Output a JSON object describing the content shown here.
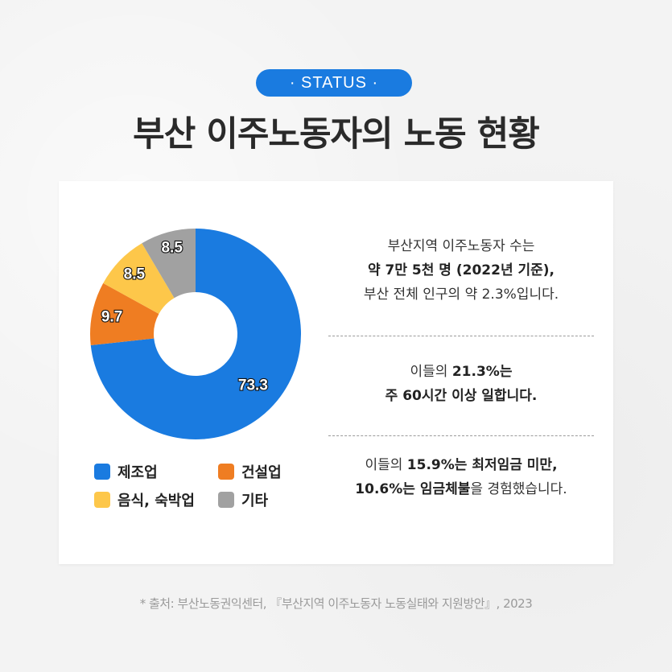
{
  "badge": "· STATUS ·",
  "title": "부산 이주노동자의 노동 현황",
  "chart_data": {
    "type": "pie",
    "donut": true,
    "start": "top",
    "direction": "clockwise",
    "categories": [
      "제조업",
      "건설업",
      "음식, 숙박업",
      "기타"
    ],
    "values": [
      73.3,
      9.7,
      8.5,
      8.5
    ],
    "value_labels": [
      "73.3",
      "9.7",
      "8.5",
      "8.5"
    ],
    "colors": [
      "#1a7be0",
      "#ef7d22",
      "#fdc74a",
      "#a1a1a1"
    ],
    "legend_position": "bottom"
  },
  "facts": [
    {
      "lines": [
        [
          {
            "t": "부산지역 이주노동자 수는",
            "b": false
          }
        ],
        [
          {
            "t": "약 7만 5천 명 (2022년 기준),",
            "b": true
          }
        ],
        [
          {
            "t": "부산 전체 인구의 약 2.3%입니다.",
            "b": false
          }
        ]
      ]
    },
    {
      "lines": [
        [
          {
            "t": "이들의 ",
            "b": false
          },
          {
            "t": "21.3%는",
            "b": true
          }
        ],
        [
          {
            "t": "주 60시간 이상 일합니다.",
            "b": true
          }
        ]
      ]
    },
    {
      "lines": [
        [
          {
            "t": "이들의 ",
            "b": false
          },
          {
            "t": "15.9%는 최저임금 미만,",
            "b": true
          }
        ],
        [
          {
            "t": "10.6%는 임금체불",
            "b": true
          },
          {
            "t": "을 경험했습니다.",
            "b": false
          }
        ]
      ]
    }
  ],
  "source": "* 출처: 부산노동권익센터, 『부산지역 이주노동자 노동실태와 지원방안』, 2023"
}
